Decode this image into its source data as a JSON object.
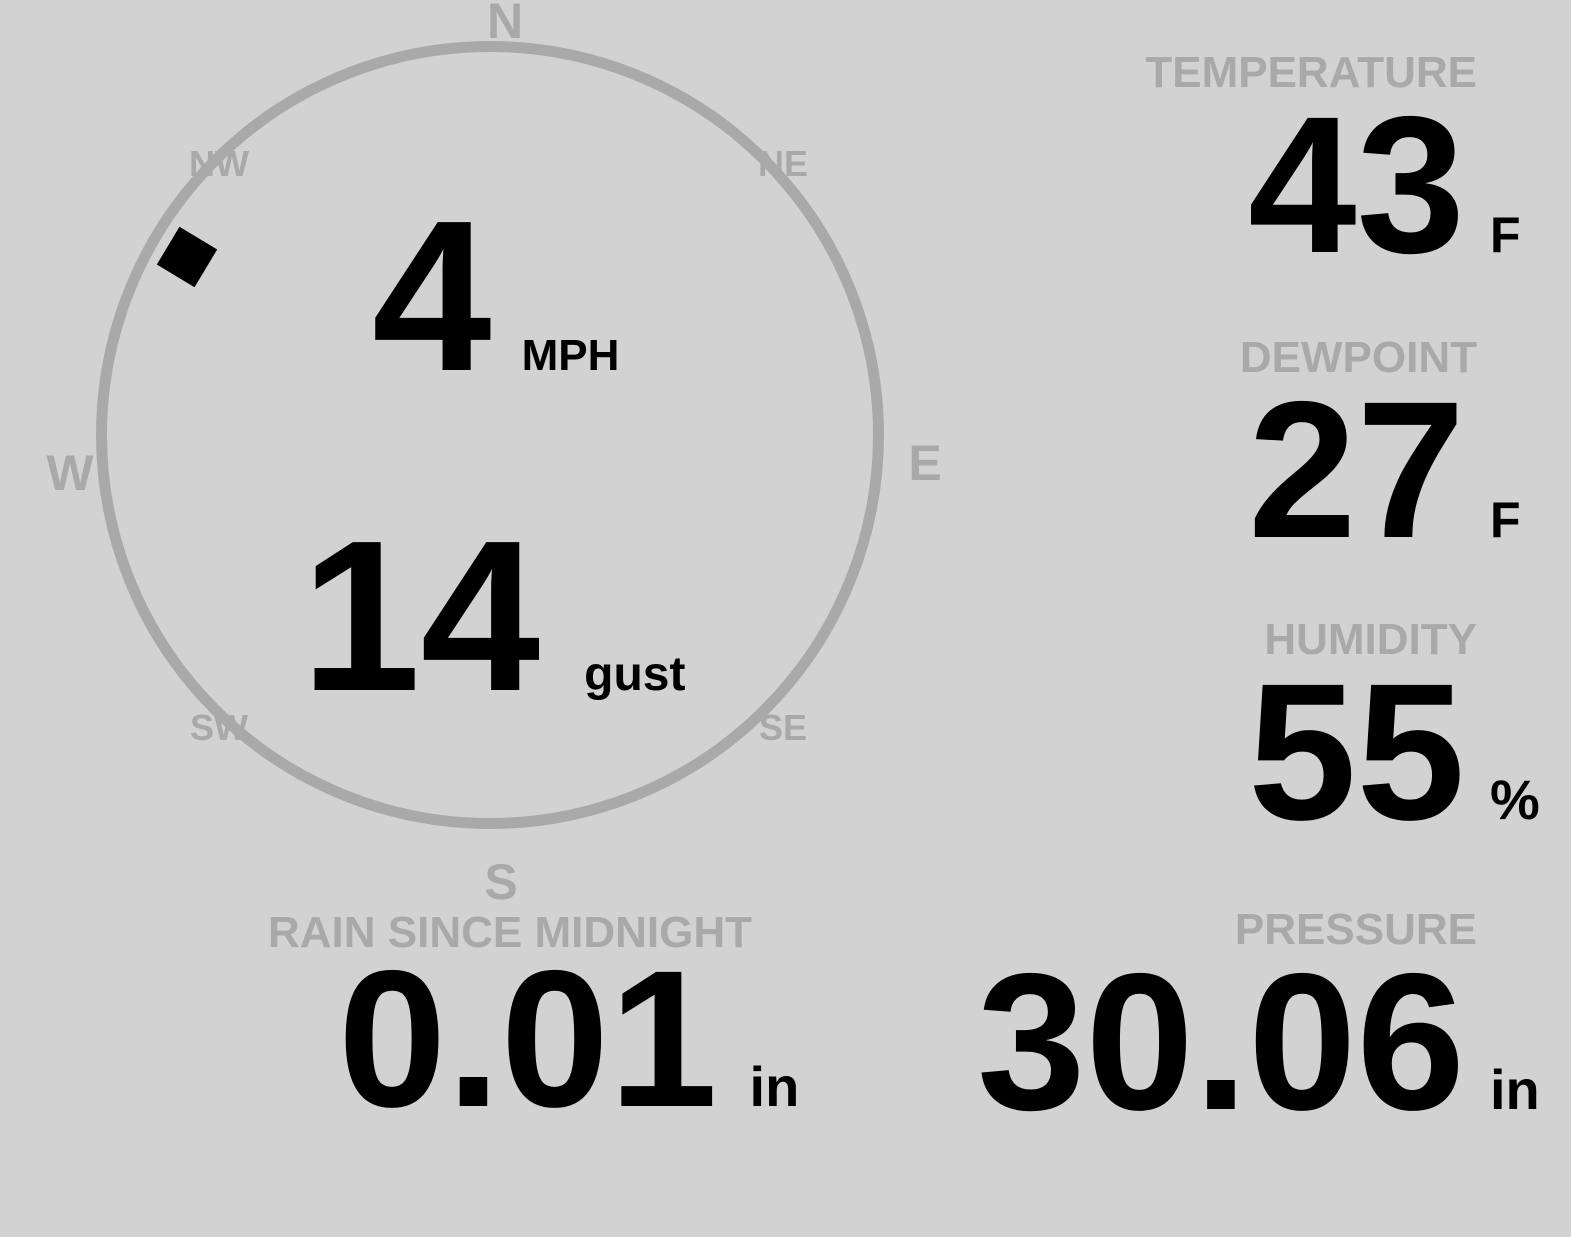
{
  "colors": {
    "background": "#d2d2d3",
    "muted": "#a9a9a9",
    "ink": "#000000"
  },
  "compass": {
    "cardinals": {
      "north": "N",
      "east": "E",
      "south": "S",
      "west": "W"
    },
    "intercardinals": {
      "northwest": "NW",
      "northeast": "NE",
      "southeast": "SE",
      "southwest": "SW"
    },
    "wind_direction_deg": 301,
    "speed": {
      "value": "4",
      "unit": "MPH"
    },
    "gust": {
      "value": "14",
      "unit": "gust"
    }
  },
  "metrics": {
    "temperature": {
      "label": "TEMPERATURE",
      "value": "43",
      "unit": "F"
    },
    "dewpoint": {
      "label": "DEWPOINT",
      "value": "27",
      "unit": "F"
    },
    "humidity": {
      "label": "HUMIDITY",
      "value": "55",
      "unit": "%"
    },
    "rain": {
      "label": "RAIN SINCE MIDNIGHT",
      "value": "0.01",
      "unit": "in"
    },
    "pressure": {
      "label": "PRESSURE",
      "value": "30.06",
      "unit": "in"
    }
  }
}
